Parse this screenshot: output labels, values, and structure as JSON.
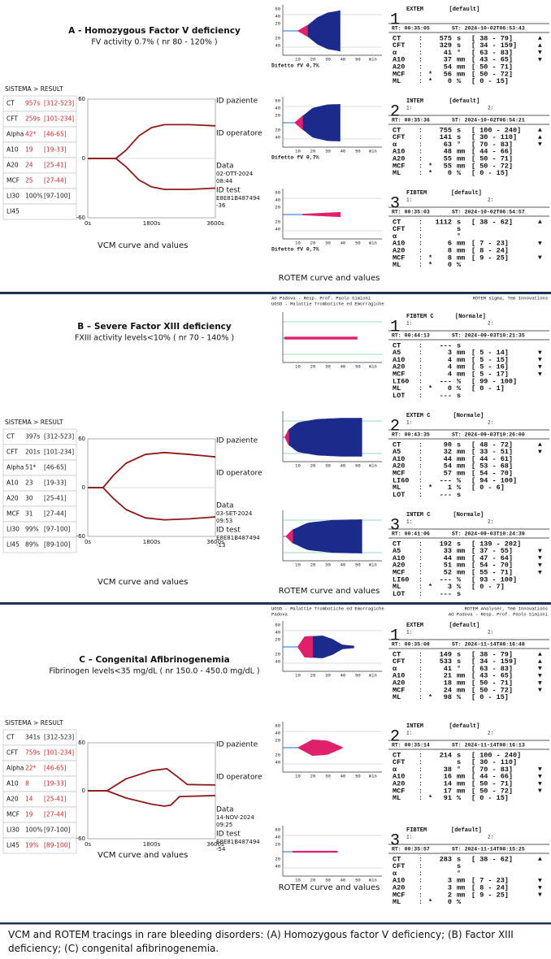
{
  "panels": [
    {
      "title": "A - Homozygous Factor V deficiency",
      "subtitle": "FV activity 0.7% ( nr 80 - 120% )",
      "vcm": {
        "header": "SISTEMA > RESULT",
        "rows": [
          {
            "p": "CT",
            "v": "957s",
            "r": "[312-523]",
            "color": "#c62828"
          },
          {
            "p": "CFT",
            "v": "259s",
            "r": "[101-234]",
            "color": "#c62828"
          },
          {
            "p": "Alpha",
            "v": "42*",
            "r": "[46-65]",
            "color": "#c62828"
          },
          {
            "p": "A10",
            "v": "19",
            "r": "[19-33]",
            "color": "#c62828"
          },
          {
            "p": "A20",
            "v": "24",
            "r": "[25-41]",
            "color": "#c62828"
          },
          {
            "p": "MCF",
            "v": "25",
            "r": "[27-44]",
            "color": "#c62828"
          },
          {
            "p": "LI30",
            "v": "100%",
            "r": "[97-100]",
            "color": "#222"
          },
          {
            "p": "LI45"
          }
        ],
        "yticks": [
          "60",
          "0",
          "-60"
        ],
        "xticks": [
          "0s",
          "1800s",
          "3600s"
        ],
        "labels": {
          "patient": "ID paziente",
          "operator": "ID operatore",
          "date_label": "Data",
          "date": "02-OTT-2024",
          "time": "08:44",
          "test_label": "ID test",
          "test_id": "E8E81B487494",
          "test_suffix": "-36"
        },
        "caption": "VCM curve and values"
      },
      "rotem": {
        "graph_yticks": [
          "60",
          "40",
          "20",
          "20",
          "40"
        ],
        "graph_xticks": [
          "10",
          "20",
          "30",
          "40",
          "50",
          "min"
        ],
        "caption": "ROTEM curve and values",
        "blocks": [
          {
            "num": "1",
            "assay": "EXTEM",
            "setting": "[default]",
            "rt": "RT: 00:35:05",
            "st": "ST: 2024-10-02T06:53:43",
            "graph_label": "Difetto fV 0,7%",
            "rows": [
              {
                "p": "CT",
                "v": "575",
                "u": "s",
                "r": "[ 38 - 79]",
                "f": "▲"
              },
              {
                "p": "CFT",
                "v": "329",
                "u": "s",
                "r": "[ 34 - 159]",
                "f": "▲"
              },
              {
                "p": "α",
                "v": "41",
                "u": "°",
                "r": "[ 63 - 83]",
                "f": "▼"
              },
              {
                "p": "A10",
                "v": "37",
                "u": "mm",
                "r": "[ 43 - 65]",
                "f": "▼"
              },
              {
                "p": "A20",
                "v": "54",
                "u": "mm",
                "r": "[ 50 - 71]"
              },
              {
                "p": "MCF",
                "m": "*",
                "v": "56",
                "u": "mm",
                "r": "[ 50 - 72]"
              },
              {
                "p": "ML",
                "m": "*",
                "v": "0",
                "u": "%",
                "r": "[ 0 - 15]"
              }
            ]
          },
          {
            "num": "2",
            "assay": "INTEM",
            "setting": "[default]",
            "slot1": "1:",
            "slot2": "2:",
            "rt": "RT: 00:35:36",
            "st": "ST: 2024-10-02T06:54:21",
            "graph_label": "Difetto fV 0,7%",
            "rows": [
              {
                "p": "CT",
                "v": "755",
                "u": "s",
                "r": "[ 100 - 240]",
                "f": "▲"
              },
              {
                "p": "CFT",
                "v": "141",
                "u": "s",
                "r": "[ 30 - 110]",
                "f": "▲"
              },
              {
                "p": "α",
                "v": "63",
                "u": "°",
                "r": "[ 70 - 83]",
                "f": "▼"
              },
              {
                "p": "A10",
                "v": "48",
                "u": "mm",
                "r": "[ 44 - 66]"
              },
              {
                "p": "A20",
                "v": "55",
                "u": "mm",
                "r": "[ 50 - 71]"
              },
              {
                "p": "MCF",
                "m": "*",
                "v": "55",
                "u": "mm",
                "r": "[ 50 - 72]"
              },
              {
                "p": "ML",
                "m": "*",
                "v": "0",
                "u": "%",
                "r": "[ 0 - 15]"
              }
            ]
          },
          {
            "num": "3",
            "assay": "FIBTEM",
            "setting": "[default]",
            "slot1": "1:",
            "slot2": "2:",
            "rt": "RT: 00:35:03",
            "st": "ST: 2024-10-02T06:54:57",
            "graph_label": "Difetto fV 0,7%",
            "rows": [
              {
                "p": "CT",
                "v": "1112",
                "u": "s",
                "r": "[ 38 - 62]",
                "f": "▲"
              },
              {
                "p": "CFT",
                "u": "s"
              },
              {
                "p": "α",
                "u": "°"
              },
              {
                "p": "A10",
                "v": "6",
                "u": "mm",
                "r": "[ 7 - 23]",
                "f": "▼"
              },
              {
                "p": "A20",
                "v": "8",
                "u": "mm",
                "r": "[ 8 - 24]"
              },
              {
                "p": "MCF",
                "m": "*",
                "v": "8",
                "u": "mm",
                "r": "[ 9 - 25]",
                "f": "▼"
              },
              {
                "p": "ML",
                "m": "*",
                "v": "0",
                "u": "%"
              }
            ]
          }
        ]
      }
    },
    {
      "title": "B – Severe Factor XIII deficiency",
      "subtitle": "FXIII activity levels<10% ( nr 70 - 140% )",
      "vcm": {
        "header": "SISTEMA > RESULT",
        "rows": [
          {
            "p": "CT",
            "v": "397s",
            "r": "[312-523]",
            "color": "#222"
          },
          {
            "p": "CFT",
            "v": "201s",
            "r": "[101-234]",
            "color": "#222"
          },
          {
            "p": "Alpha",
            "v": "51*",
            "r": "[46-65]",
            "color": "#222"
          },
          {
            "p": "A10",
            "v": "23",
            "r": "[19-33]",
            "color": "#222"
          },
          {
            "p": "A20",
            "v": "30",
            "r": "[25-41]",
            "color": "#222"
          },
          {
            "p": "MCF",
            "v": "31",
            "r": "[27-44]",
            "color": "#222"
          },
          {
            "p": "LI30",
            "v": "99%",
            "r": "[97-100]",
            "color": "#222"
          },
          {
            "p": "LI45",
            "v": "89%",
            "r": "[89-100]",
            "color": "#222"
          }
        ],
        "yticks": [
          "60",
          "0",
          "-60"
        ],
        "xticks": [
          "0s",
          "1800s",
          "3600s"
        ],
        "labels": {
          "patient": "ID paziente",
          "operator": "ID operatore",
          "date_label": "Data",
          "date": "03-SET-2024",
          "time": "09:53",
          "test_label": "ID test",
          "test_id": "E8E81B487494",
          "test_suffix": "-13"
        },
        "caption": "VCM curve and values"
      },
      "rotem": {
        "header_left": [
          "AO Padova - Resp. Prof. Paolo Simioni",
          "UOSD - Malattie Trombotiche ed Emorragiche"
        ],
        "header_right": [
          "ROTEM sigma, Tem Innovations"
        ],
        "graph_xticks": [
          "10",
          "20",
          "30",
          "40",
          "50",
          "min"
        ],
        "caption": "ROTEM curve and values",
        "blocks": [
          {
            "num": "1",
            "assay": "FIBTEM C",
            "setting": "[Normale]",
            "slot1": "1:",
            "slot2": "2:",
            "rt": "RT: 00:44:13",
            "st": "ST: 2024-09-03T10:21:35",
            "rows": [
              {
                "p": "CT",
                "v": "---",
                "u": "s"
              },
              {
                "p": "A5",
                "v": "3",
                "u": "mm",
                "r": "[ 5 - 14]",
                "f": "▼"
              },
              {
                "p": "A10",
                "v": "4",
                "u": "mm",
                "r": "[ 5 - 15]",
                "f": "▼"
              },
              {
                "p": "A20",
                "v": "4",
                "u": "mm",
                "r": "[ 5 - 16]",
                "f": "▼"
              },
              {
                "p": "MCF",
                "v": "4",
                "u": "mm",
                "r": "[ 5 - 17]",
                "f": "▼"
              },
              {
                "p": "LI60",
                "v": "---",
                "u": "%",
                "r": "[ 99 - 100]"
              },
              {
                "p": "ML",
                "m": "*",
                "v": "0",
                "u": "%",
                "r": "[ 0 - 1]"
              },
              {
                "p": "LOT",
                "v": "---",
                "u": "s"
              }
            ]
          },
          {
            "num": "2",
            "assay": "EXTEM C",
            "setting": "[Normale]",
            "slot1": "1:",
            "slot2": "2:",
            "rt": "RT: 00:43:35",
            "st": "ST: 2024-09-03T10:26:00",
            "rows": [
              {
                "p": "CT",
                "v": "90",
                "u": "s",
                "r": "[ 48 - 72]",
                "f": "▲"
              },
              {
                "p": "A5",
                "v": "32",
                "u": "mm",
                "r": "[ 33 - 51]",
                "f": "▼"
              },
              {
                "p": "A10",
                "v": "44",
                "u": "mm",
                "r": "[ 44 - 61]"
              },
              {
                "p": "A20",
                "v": "54",
                "u": "mm",
                "r": "[ 53 - 68]"
              },
              {
                "p": "MCF",
                "v": "57",
                "u": "mm",
                "r": "[ 54 - 70]"
              },
              {
                "p": "LI60",
                "v": "---",
                "u": "%",
                "r": "[ 94 - 100]"
              },
              {
                "p": "ML",
                "m": "*",
                "v": "1",
                "u": "%",
                "r": "[ 0 - 6]"
              },
              {
                "p": "LOT",
                "v": "---",
                "u": "s"
              }
            ]
          },
          {
            "num": "3",
            "assay": "INTEM C",
            "setting": "[Normale]",
            "slot1": "1:",
            "slot2": "2:",
            "rt": "RT: 00:41:06",
            "st": "ST: 2024-09-03T10:24:39",
            "rows": [
              {
                "p": "CT",
                "v": "192",
                "u": "s",
                "r": "[ 139 - 202]"
              },
              {
                "p": "A5",
                "v": "33",
                "u": "mm",
                "r": "[ 37 - 55]",
                "f": "▼"
              },
              {
                "p": "A10",
                "v": "44",
                "u": "mm",
                "r": "[ 47 - 64]",
                "f": "▼"
              },
              {
                "p": "A20",
                "v": "51",
                "u": "mm",
                "r": "[ 54 - 70]",
                "f": "▼"
              },
              {
                "p": "MCF",
                "v": "52",
                "u": "mm",
                "r": "[ 55 - 71]",
                "f": "▼"
              },
              {
                "p": "LI60",
                "v": "---",
                "u": "%",
                "r": "[ 93 - 100]"
              },
              {
                "p": "ML",
                "m": "*",
                "v": "3",
                "u": "%",
                "r": "[ 0 - 7]"
              },
              {
                "p": "LOT",
                "v": "---",
                "u": "s"
              }
            ]
          }
        ]
      }
    },
    {
      "title": "C – Congenital Afibrinogenemia",
      "subtitle": "Fibrinogen levels<35 mg/dL ( nr 150.0 - 450.0 mg/dL )",
      "vcm": {
        "header": "SISTEMA > RESULT",
        "rows": [
          {
            "p": "CT",
            "v": "341s",
            "r": "[312-523]",
            "color": "#222"
          },
          {
            "p": "CFT",
            "v": "759s",
            "r": "[101-234]",
            "color": "#c62828"
          },
          {
            "p": "Alpha",
            "v": "22*",
            "r": "[46-65]",
            "color": "#c62828"
          },
          {
            "p": "A10",
            "v": "8",
            "r": "[19-33]",
            "color": "#c62828"
          },
          {
            "p": "A20",
            "v": "14",
            "r": "[25-41]",
            "color": "#c62828"
          },
          {
            "p": "MCF",
            "v": "19",
            "r": "[27-44]",
            "color": "#c62828"
          },
          {
            "p": "LI30",
            "v": "100%",
            "r": "[97-100]",
            "color": "#222"
          },
          {
            "p": "LI45",
            "v": "19%",
            "r": "[89-100]",
            "color": "#c62828"
          }
        ],
        "yticks": [
          "60",
          "0",
          "-60"
        ],
        "xticks": [
          "0s",
          "1800s",
          "3600s"
        ],
        "labels": {
          "patient": "ID paziente",
          "operator": "ID operatore",
          "date_label": "Data",
          "date": "14-NOV-2024",
          "time": "09:25",
          "test_label": "ID test",
          "test_id": "E8E81B487494",
          "test_suffix": "-54"
        },
        "caption": "VCM curve and values"
      },
      "rotem": {
        "header_left": [
          "UOSD - Malattie Trombotiche ed Emorragiche",
          "Padova"
        ],
        "header_right": [
          "ROTEM Analyser, Tem Innovations",
          "AO Padova - Resp. Prof. Paolo Simioni"
        ],
        "graph_yticks": [
          "60",
          "40",
          "20",
          "20",
          "40"
        ],
        "graph_xticks": [
          "10",
          "20",
          "30",
          "40",
          "50",
          "min"
        ],
        "caption": "ROTEM curve and values",
        "blocks": [
          {
            "num": "1",
            "assay": "EXTEM",
            "setting": "[default]",
            "slot1": "1:",
            "slot2": "2:",
            "rt": "RT: 00:35:08",
            "st": "ST: 2024-11-14T08:16:48",
            "rows": [
              {
                "p": "CT",
                "v": "149",
                "u": "s",
                "r": "[ 38 - 79]",
                "f": "▲"
              },
              {
                "p": "CFT",
                "v": "533",
                "u": "s",
                "r": "[ 34 - 159]",
                "f": "▲"
              },
              {
                "p": "α",
                "v": "41",
                "u": "°",
                "r": "[ 63 - 83]",
                "f": "▼"
              },
              {
                "p": "A10",
                "v": "21",
                "u": "mm",
                "r": "[ 43 - 65]",
                "f": "▼"
              },
              {
                "p": "A20",
                "v": "18",
                "u": "mm",
                "r": "[ 50 - 71]",
                "f": "▼"
              },
              {
                "p": "MCF",
                "v": "24",
                "u": "mm",
                "r": "[ 50 - 72]",
                "f": "▼"
              },
              {
                "p": "ML",
                "m": "*",
                "v": "98",
                "u": "%",
                "r": "[ 0 - 15]"
              }
            ]
          },
          {
            "num": "2",
            "assay": "INTEM",
            "setting": "[default]",
            "slot1": "1:",
            "slot2": "2:",
            "rt": "RT: 00:35:14",
            "st": "ST: 2024-11-14T08:16:13",
            "rows": [
              {
                "p": "CT",
                "v": "214",
                "u": "s",
                "r": "[ 100 - 240]"
              },
              {
                "p": "CFT",
                "u": "s",
                "r": "[ 30 - 110]"
              },
              {
                "p": "α",
                "v": "38",
                "u": "°",
                "r": "[ 70 - 83]",
                "f": "▼"
              },
              {
                "p": "A10",
                "v": "16",
                "u": "mm",
                "r": "[ 44 - 66]",
                "f": "▼"
              },
              {
                "p": "A20",
                "v": "14",
                "u": "mm",
                "r": "[ 50 - 71]",
                "f": "▼"
              },
              {
                "p": "MCF",
                "v": "17",
                "u": "mm",
                "r": "[ 50 - 72]",
                "f": "▼"
              },
              {
                "p": "ML",
                "m": "*",
                "v": "91",
                "u": "%",
                "r": "[ 0 - 15]"
              }
            ]
          },
          {
            "num": "3",
            "assay": "FIBTEM",
            "setting": "[default]",
            "slot1": "1:",
            "slot2": "2:",
            "rt": "RT: 00:35:57",
            "st": "ST: 2024-11-14T08:15:25",
            "rows": [
              {
                "p": "CT",
                "v": "283",
                "u": "s",
                "r": "[ 38 - 62]",
                "f": "▲"
              },
              {
                "p": "CFT",
                "u": "s"
              },
              {
                "p": "α",
                "u": "°"
              },
              {
                "p": "A10",
                "v": "3",
                "u": "mm",
                "r": "[ 7 - 23]",
                "f": "▼"
              },
              {
                "p": "A20",
                "v": "3",
                "u": "mm",
                "r": "[ 8 - 24]",
                "f": "▼"
              },
              {
                "p": "MCF",
                "v": "2",
                "u": "mm",
                "r": "[ 9 - 25]",
                "f": "▼"
              },
              {
                "p": "ML",
                "m": "*",
                "v": "0",
                "u": "%"
              }
            ]
          }
        ]
      }
    }
  ],
  "caption": "VCM and ROTEM tracings in rare bleeding disorders: (A) Homozygous factor V deficiency; (B) Factor XIII deficiency; (C) congenital afibrinogenemia."
}
